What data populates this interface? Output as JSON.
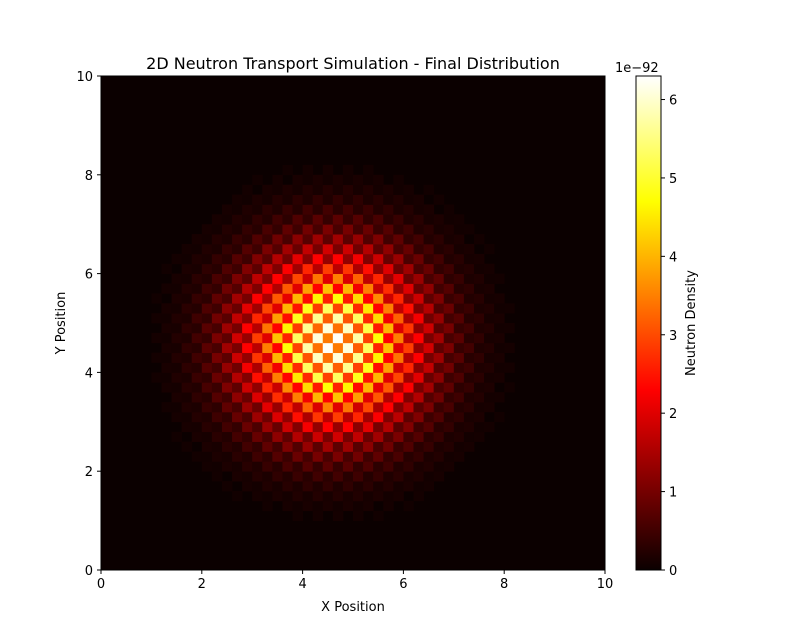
{
  "chart_data": {
    "type": "heatmap",
    "title": "2D Neutron Transport Simulation - Final Distribution",
    "xlabel": "X Position",
    "ylabel": "Y Position",
    "xlim": [
      0,
      10
    ],
    "ylim": [
      0,
      10
    ],
    "xticks": [
      "0",
      "2",
      "4",
      "6",
      "8",
      "10"
    ],
    "yticks": [
      "0",
      "2",
      "4",
      "6",
      "8",
      "10"
    ],
    "grid": false,
    "colormap": "hot",
    "colorbar": {
      "label": "Neutron Density",
      "offset_text": "1e−92",
      "range": [
        0,
        6.3
      ],
      "ticks": [
        "0",
        "1",
        "2",
        "3",
        "4",
        "5",
        "6"
      ]
    },
    "field": {
      "description_of_values": "Gaussian neutron density distribution with checkerboard oscillation",
      "grid_size": 50,
      "peak_value": 6.3,
      "center": [
        4.6,
        4.6
      ],
      "sigma": 1.2,
      "checkerboard_low_ratio": 0.55
    }
  }
}
